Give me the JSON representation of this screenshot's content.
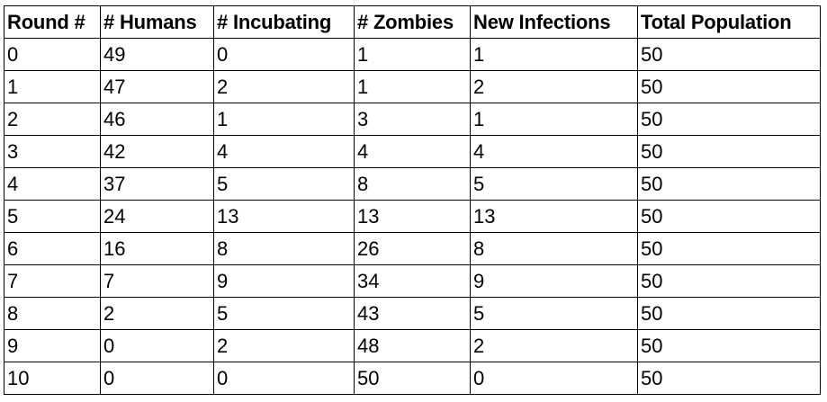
{
  "chart_data": {
    "type": "table",
    "columns": [
      "Round #",
      "# Humans",
      "# Incubating",
      "# Zombies",
      "New Infections",
      "Total Population"
    ],
    "rows": [
      [
        "0",
        "49",
        "0",
        "1",
        "1",
        "50"
      ],
      [
        "1",
        "47",
        "2",
        "1",
        "2",
        "50"
      ],
      [
        "2",
        "46",
        "1",
        "3",
        "1",
        "50"
      ],
      [
        "3",
        "42",
        "4",
        "4",
        "4",
        "50"
      ],
      [
        "4",
        "37",
        "5",
        "8",
        "5",
        "50"
      ],
      [
        "5",
        "24",
        "13",
        "13",
        "13",
        "50"
      ],
      [
        "6",
        "16",
        "8",
        "26",
        "8",
        "50"
      ],
      [
        "7",
        "7",
        "9",
        "34",
        "9",
        "50"
      ],
      [
        "8",
        "2",
        "5",
        "43",
        "5",
        "50"
      ],
      [
        "9",
        "0",
        "2",
        "48",
        "2",
        "50"
      ],
      [
        "10",
        "0",
        "0",
        "50",
        "0",
        "50"
      ]
    ]
  }
}
